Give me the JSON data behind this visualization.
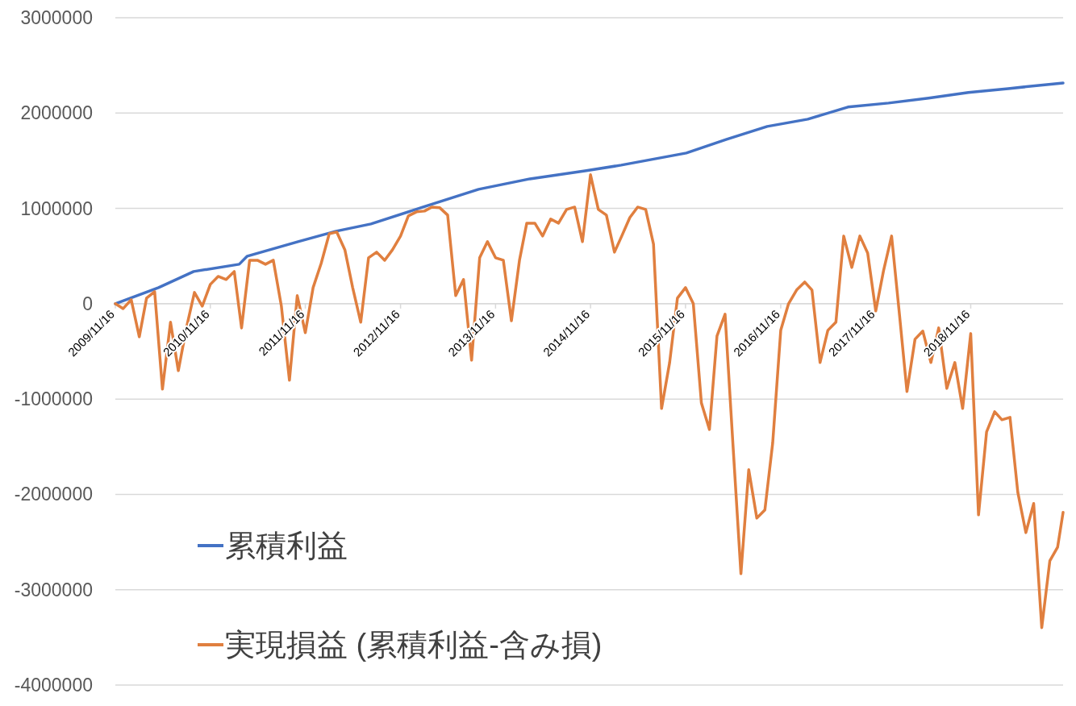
{
  "chart_data": {
    "type": "line",
    "legend": "bottom left",
    "grid": "y",
    "xlim": [
      "2009-11-16",
      "2019-11-06"
    ],
    "xticks": [
      {
        "value": "2009-11-16",
        "label": "2009/11/16"
      },
      {
        "value": "2010-11-16",
        "label": "2010/11/16"
      },
      {
        "value": "2011-11-16",
        "label": "2011/11/16"
      },
      {
        "value": "2012-11-16",
        "label": "2012/11/16"
      },
      {
        "value": "2013-11-16",
        "label": "2013/11/16"
      },
      {
        "value": "2014-11-16",
        "label": "2014/11/16"
      },
      {
        "value": "2015-11-16",
        "label": "2015/11/16"
      },
      {
        "value": "2016-11-16",
        "label": "2016/11/16"
      },
      {
        "value": "2017-11-16",
        "label": "2017/11/16"
      },
      {
        "value": "2018-11-16",
        "label": "2018/11/16"
      }
    ],
    "ylim": [
      -4000000,
      3000000
    ],
    "yticks": [
      -4000000,
      -3000000,
      -2000000,
      -1000000,
      0,
      1000000,
      2000000,
      3000000
    ],
    "series": [
      {
        "name": "累積利益",
        "color": "#4472c4",
        "x": [
          "2009-11-16",
          "2010-05-01",
          "2010-09-13",
          "2011-03-07",
          "2011-04-07",
          "2011-10-19",
          "2012-03-13",
          "2012-07-25",
          "2013-03-31",
          "2013-09-12",
          "2014-03-28",
          "2014-10-31",
          "2015-03-14",
          "2015-11-19",
          "2016-04-22",
          "2016-09-25",
          "2017-02-28",
          "2017-08-01",
          "2018-01-04",
          "2018-06-07",
          "2018-11-07",
          "2019-04-09",
          "2019-11-06"
        ],
        "values": [
          0,
          169000,
          338000,
          414000,
          499000,
          651000,
          761000,
          837000,
          1057000,
          1200000,
          1310000,
          1395000,
          1454000,
          1581000,
          1724000,
          1860000,
          1936000,
          2063000,
          2105000,
          2156000,
          2215000,
          2257000,
          2316000
        ]
      },
      {
        "name": "実現損益 (累積利益-含み損)",
        "color": "#e07f3f",
        "x": [
          "2009-11-16",
          "2009-12-16",
          "2010-01-16",
          "2010-02-16",
          "2010-03-16",
          "2010-04-16",
          "2010-05-16",
          "2010-06-16",
          "2010-07-16",
          "2010-08-16",
          "2010-09-16",
          "2010-10-16",
          "2010-11-16",
          "2010-12-16",
          "2011-01-16",
          "2011-02-16",
          "2011-03-16",
          "2011-04-16",
          "2011-05-16",
          "2011-06-16",
          "2011-07-16",
          "2011-08-16",
          "2011-09-16",
          "2011-10-16",
          "2011-11-16",
          "2011-12-16",
          "2012-01-16",
          "2012-02-16",
          "2012-03-16",
          "2012-04-16",
          "2012-05-16",
          "2012-06-16",
          "2012-07-16",
          "2012-08-16",
          "2012-09-16",
          "2012-10-16",
          "2012-11-16",
          "2012-12-16",
          "2013-01-16",
          "2013-02-16",
          "2013-03-16",
          "2013-04-16",
          "2013-05-16",
          "2013-06-16",
          "2013-07-16",
          "2013-08-16",
          "2013-09-16",
          "2013-10-16",
          "2013-11-16",
          "2013-12-16",
          "2014-01-16",
          "2014-02-16",
          "2014-03-16",
          "2014-04-16",
          "2014-05-16",
          "2014-06-16",
          "2014-07-16",
          "2014-08-16",
          "2014-09-16",
          "2014-10-16",
          "2014-11-16",
          "2014-12-16",
          "2015-01-16",
          "2015-02-16",
          "2015-03-16",
          "2015-04-16",
          "2015-05-16",
          "2015-06-16",
          "2015-07-16",
          "2015-08-16",
          "2015-09-16",
          "2015-10-16",
          "2015-11-16",
          "2015-12-16",
          "2016-01-16",
          "2016-02-16",
          "2016-03-16",
          "2016-04-16",
          "2016-05-16",
          "2016-06-16",
          "2016-07-16",
          "2016-08-16",
          "2016-09-16",
          "2016-10-16",
          "2016-11-16",
          "2016-12-16",
          "2017-01-16",
          "2017-02-16",
          "2017-03-16",
          "2017-04-16",
          "2017-05-16",
          "2017-06-16",
          "2017-07-16",
          "2017-08-16",
          "2017-09-16",
          "2017-10-16",
          "2017-11-16",
          "2017-12-16",
          "2018-01-16",
          "2018-02-16",
          "2018-03-16",
          "2018-04-16",
          "2018-05-16",
          "2018-06-16",
          "2018-07-16",
          "2018-08-16",
          "2018-09-16",
          "2018-10-16",
          "2018-11-16",
          "2018-12-16",
          "2019-01-16",
          "2019-02-16",
          "2019-03-16",
          "2019-04-16",
          "2019-05-16",
          "2019-06-16",
          "2019-07-16",
          "2019-08-16",
          "2019-09-16",
          "2019-10-16",
          "2019-11-06"
        ],
        "values": [
          0,
          -51000,
          42000,
          -347000,
          59000,
          127000,
          -896000,
          -194000,
          -702000,
          -254000,
          118000,
          -25000,
          203000,
          287000,
          254000,
          338000,
          -254000,
          456000,
          456000,
          414000,
          456000,
          -25000,
          -803000,
          85000,
          -304000,
          169000,
          423000,
          735000,
          752000,
          566000,
          169000,
          -194000,
          482000,
          541000,
          456000,
          566000,
          710000,
          921000,
          964000,
          972000,
          1014000,
          1006000,
          930000,
          85000,
          254000,
          -592000,
          482000,
          651000,
          482000,
          456000,
          -178000,
          456000,
          845000,
          845000,
          710000,
          888000,
          845000,
          989000,
          1014000,
          651000,
          1353000,
          989000,
          930000,
          541000,
          710000,
          904000,
          1014000,
          989000,
          626000,
          -1099000,
          -617000,
          59000,
          169000,
          0,
          -1040000,
          -1319000,
          -338000,
          -110000,
          -1462000,
          -2832000,
          -1741000,
          -2249000,
          -2164000,
          -1462000,
          -279000,
          0,
          144000,
          228000,
          144000,
          -617000,
          -279000,
          -194000,
          710000,
          380000,
          710000,
          532000,
          -76000,
          347000,
          710000,
          -135000,
          -921000,
          -372000,
          -287000,
          -617000,
          -254000,
          -888000,
          -617000,
          -1099000,
          -313000,
          -2215000,
          -1344000,
          -1133000,
          -1217000,
          -1192000,
          -1978000,
          -2401000,
          -2096000,
          -3398000,
          -2697000,
          -2553000,
          -2189000
        ]
      }
    ]
  }
}
